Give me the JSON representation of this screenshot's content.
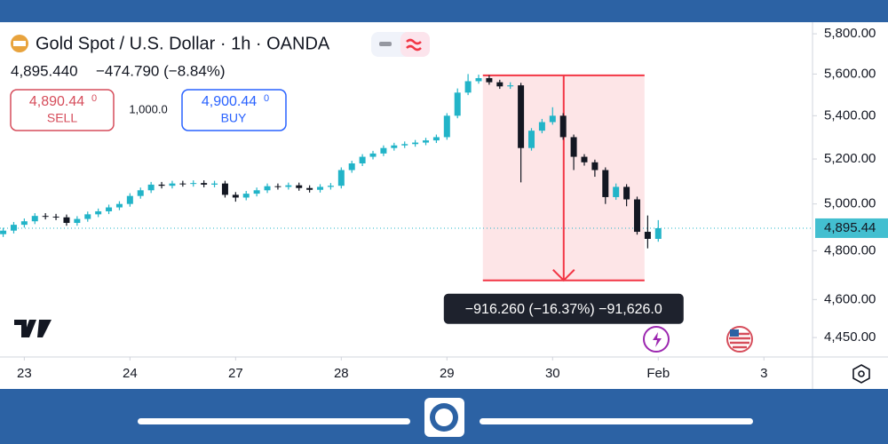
{
  "chart_data": {
    "type": "candlestick",
    "title": "Gold Spot / U.S. Dollar · 1h · OANDA",
    "price": "4,895.440",
    "change": "−474.790 (−8.84%)",
    "sell_price": "4,890.44",
    "sell_suffix": "0",
    "sell_label": "SELL",
    "quantity": "1,000.0",
    "buy_price": "4,900.44",
    "buy_suffix": "0",
    "buy_label": "BUY",
    "log_scale": true,
    "up_color": "#22b4c8",
    "down_color": "#131722",
    "ylim": [
      4382,
      5859
    ],
    "yticks": [
      {
        "value": 5800,
        "label": "5,800.00"
      },
      {
        "value": 5600,
        "label": "5,600.00"
      },
      {
        "value": 5400,
        "label": "5,400.00"
      },
      {
        "value": 5200,
        "label": "5,200.00"
      },
      {
        "value": 5000,
        "label": "5,000.00"
      },
      {
        "value": 4800,
        "label": "4,800.00"
      },
      {
        "value": 4600,
        "label": "4,600.00"
      },
      {
        "value": 4450,
        "label": "4,450.00"
      }
    ],
    "xlim": [
      -0.23,
      7.46
    ],
    "xticks": [
      {
        "value": 0,
        "label": "23"
      },
      {
        "value": 1,
        "label": "24"
      },
      {
        "value": 2,
        "label": "27"
      },
      {
        "value": 3,
        "label": "28"
      },
      {
        "value": 4,
        "label": "29"
      },
      {
        "value": 5,
        "label": "30"
      },
      {
        "value": 6,
        "label": "Feb"
      },
      {
        "value": 7,
        "label": "3"
      }
    ],
    "last_price": {
      "value": 4895.44,
      "label": "4,895.44",
      "color": "#22b4c8"
    },
    "measure": {
      "x": [
        4.34,
        5.87
      ],
      "from": 5593.7,
      "to": 4677.44,
      "label": "−916.260 (−16.37%) −91,626.0",
      "color": "#f23645"
    },
    "x": [
      -0.2,
      -0.1,
      0,
      0.1,
      0.2,
      0.3,
      0.4,
      0.5,
      0.6,
      0.7,
      0.8,
      0.9,
      1,
      1.1,
      1.2,
      1.3,
      1.4,
      1.5,
      1.6,
      1.7,
      1.8,
      1.9,
      2,
      2.1,
      2.2,
      2.3,
      2.4,
      2.5,
      2.6,
      2.7,
      2.8,
      2.9,
      3,
      3.1,
      3.2,
      3.3,
      3.4,
      3.5,
      3.6,
      3.7,
      3.8,
      3.9,
      4,
      4.1,
      4.2,
      4.3,
      4.4,
      4.5,
      4.6,
      4.7,
      4.8,
      4.9,
      5,
      5.1,
      5.2,
      5.3,
      5.4,
      5.5,
      5.6,
      5.7,
      5.8,
      5.9,
      6
    ],
    "open": [
      4870,
      4885,
      4910,
      4925,
      4948,
      4945,
      4942,
      4918,
      4935,
      4955,
      4968,
      4985,
      5000,
      5035,
      5060,
      5085,
      5080,
      5090,
      5088,
      5092,
      5085,
      5090,
      5040,
      5028,
      5045,
      5060,
      5078,
      5075,
      5082,
      5070,
      5062,
      5075,
      5080,
      5150,
      5180,
      5210,
      5225,
      5250,
      5262,
      5268,
      5275,
      5285,
      5300,
      5400,
      5510,
      5565,
      5580,
      5560,
      5540,
      5545,
      5250,
      5330,
      5370,
      5400,
      5300,
      5210,
      5185,
      5150,
      5030,
      5075,
      5020,
      4880,
      4850
    ],
    "high": [
      4897,
      4922,
      4937,
      4960,
      4960,
      4957,
      4954,
      4947,
      4967,
      4980,
      4997,
      5012,
      5047,
      5072,
      5097,
      5097,
      5102,
      5102,
      5104,
      5104,
      5102,
      5102,
      5052,
      5057,
      5072,
      5090,
      5090,
      5094,
      5094,
      5082,
      5087,
      5092,
      5162,
      5192,
      5222,
      5237,
      5262,
      5274,
      5280,
      5287,
      5297,
      5312,
      5412,
      5530,
      5600,
      5597,
      5594,
      5572,
      5560,
      5557,
      5342,
      5385,
      5440,
      5412,
      5312,
      5222,
      5197,
      5162,
      5090,
      5087,
      5032,
      4950,
      4930
    ],
    "low": [
      4858,
      4873,
      4898,
      4913,
      4933,
      4930,
      4906,
      4906,
      4923,
      4943,
      4956,
      4973,
      4988,
      5023,
      5048,
      5068,
      5068,
      5076,
      5076,
      5073,
      5073,
      5028,
      5010,
      5016,
      5033,
      5048,
      5063,
      5063,
      5058,
      5050,
      5050,
      5063,
      5068,
      5138,
      5168,
      5198,
      5213,
      5238,
      5250,
      5256,
      5263,
      5273,
      5288,
      5388,
      5498,
      5553,
      5548,
      5528,
      5528,
      5095,
      5238,
      5318,
      5358,
      5288,
      5150,
      5170,
      5120,
      5000,
      5018,
      4990,
      4868,
      4810,
      4838
    ],
    "close": [
      4885,
      4910,
      4925,
      4948,
      4945,
      4942,
      4918,
      4935,
      4955,
      4968,
      4985,
      5000,
      5035,
      5060,
      5085,
      5080,
      5090,
      5088,
      5092,
      5085,
      5090,
      5040,
      5028,
      5045,
      5060,
      5078,
      5075,
      5082,
      5070,
      5062,
      5075,
      5080,
      5150,
      5180,
      5210,
      5225,
      5250,
      5262,
      5268,
      5275,
      5285,
      5300,
      5400,
      5510,
      5565,
      5580,
      5560,
      5540,
      5545,
      5250,
      5330,
      5370,
      5400,
      5300,
      5210,
      5185,
      5150,
      5030,
      5075,
      5020,
      4880,
      4850,
      4895.44
    ]
  }
}
